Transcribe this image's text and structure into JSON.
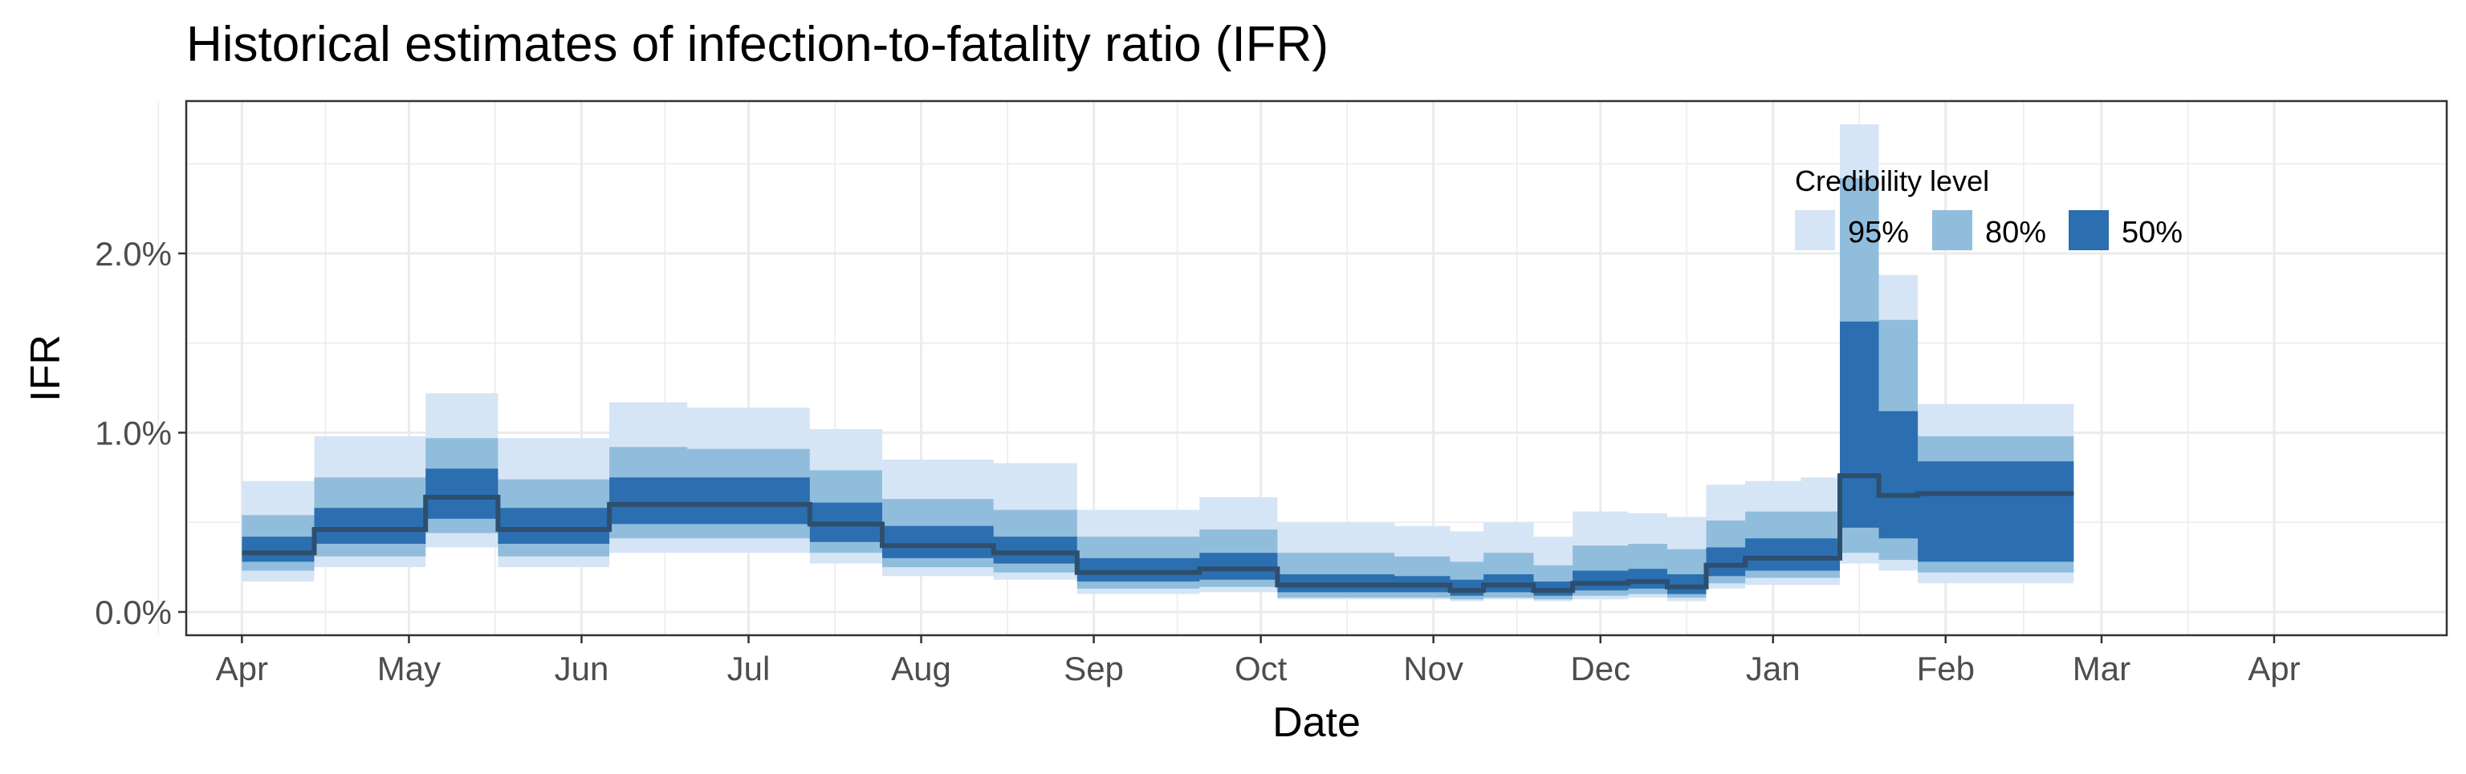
{
  "chart_data": {
    "type": "area",
    "title": "Historical estimates of infection-to-fatality ratio (IFR)",
    "xlabel": "Date",
    "ylabel": "IFR",
    "x_tick_labels": [
      "Apr",
      "May",
      "Jun",
      "Jul",
      "Aug",
      "Sep",
      "Oct",
      "Nov",
      "Dec",
      "Jan",
      "Feb",
      "Mar",
      "Apr"
    ],
    "y_tick_labels": [
      "0.0%",
      "1.0%",
      "2.0%"
    ],
    "y_ticks": [
      0,
      1,
      2
    ],
    "ylim": [
      -0.13,
      2.85
    ],
    "xlim_days": [
      -10,
      396
    ],
    "grid": true,
    "legend": {
      "title": "Credibility level",
      "position": "top-right inside",
      "entries": [
        "95%",
        "80%",
        "50%"
      ]
    },
    "colors": {
      "band_95": "#d6e5f5",
      "band_80": "#91bddc",
      "band_50": "#2b6fb1",
      "median_line": "#2e4e6e",
      "grid": "#ebebeb",
      "panel_border": "#333333"
    },
    "segments": [
      {
        "start": "2020-04-01",
        "end": "2020-04-14",
        "median": 0.33,
        "lo50": 0.28,
        "hi50": 0.42,
        "lo80": 0.23,
        "hi80": 0.54,
        "lo95": 0.17,
        "hi95": 0.73
      },
      {
        "start": "2020-04-14",
        "end": "2020-05-04",
        "median": 0.46,
        "lo50": 0.38,
        "hi50": 0.58,
        "lo80": 0.31,
        "hi80": 0.75,
        "lo95": 0.25,
        "hi95": 0.98
      },
      {
        "start": "2020-05-04",
        "end": "2020-05-17",
        "median": 0.64,
        "lo50": 0.52,
        "hi50": 0.8,
        "lo80": 0.44,
        "hi80": 0.97,
        "lo95": 0.36,
        "hi95": 1.22
      },
      {
        "start": "2020-05-17",
        "end": "2020-06-06",
        "median": 0.46,
        "lo50": 0.38,
        "hi50": 0.58,
        "lo80": 0.31,
        "hi80": 0.74,
        "lo95": 0.25,
        "hi95": 0.97
      },
      {
        "start": "2020-06-06",
        "end": "2020-06-20",
        "median": 0.6,
        "lo50": 0.49,
        "hi50": 0.75,
        "lo80": 0.41,
        "hi80": 0.92,
        "lo95": 0.33,
        "hi95": 1.17
      },
      {
        "start": "2020-06-20",
        "end": "2020-07-12",
        "median": 0.6,
        "lo50": 0.49,
        "hi50": 0.75,
        "lo80": 0.41,
        "hi80": 0.91,
        "lo95": 0.33,
        "hi95": 1.14
      },
      {
        "start": "2020-07-12",
        "end": "2020-07-25",
        "median": 0.49,
        "lo50": 0.39,
        "hi50": 0.61,
        "lo80": 0.33,
        "hi80": 0.79,
        "lo95": 0.27,
        "hi95": 1.02
      },
      {
        "start": "2020-07-25",
        "end": "2020-08-14",
        "median": 0.37,
        "lo50": 0.3,
        "hi50": 0.48,
        "lo80": 0.25,
        "hi80": 0.63,
        "lo95": 0.2,
        "hi95": 0.85
      },
      {
        "start": "2020-08-14",
        "end": "2020-08-29",
        "median": 0.33,
        "lo50": 0.27,
        "hi50": 0.42,
        "lo80": 0.22,
        "hi80": 0.57,
        "lo95": 0.18,
        "hi95": 0.83
      },
      {
        "start": "2020-08-29",
        "end": "2020-09-20",
        "median": 0.22,
        "lo50": 0.17,
        "hi50": 0.3,
        "lo80": 0.13,
        "hi80": 0.42,
        "lo95": 0.1,
        "hi95": 0.57
      },
      {
        "start": "2020-09-20",
        "end": "2020-10-04",
        "median": 0.24,
        "lo50": 0.18,
        "hi50": 0.33,
        "lo80": 0.14,
        "hi80": 0.46,
        "lo95": 0.11,
        "hi95": 0.64
      },
      {
        "start": "2020-10-04",
        "end": "2020-10-25",
        "median": 0.15,
        "lo50": 0.11,
        "hi50": 0.21,
        "lo80": 0.08,
        "hi80": 0.33,
        "lo95": 0.07,
        "hi95": 0.5
      },
      {
        "start": "2020-10-25",
        "end": "2020-11-04",
        "median": 0.15,
        "lo50": 0.11,
        "hi50": 0.2,
        "lo80": 0.08,
        "hi80": 0.31,
        "lo95": 0.07,
        "hi95": 0.48
      },
      {
        "start": "2020-11-04",
        "end": "2020-11-10",
        "median": 0.12,
        "lo50": 0.09,
        "hi50": 0.18,
        "lo80": 0.07,
        "hi80": 0.28,
        "lo95": 0.06,
        "hi95": 0.45
      },
      {
        "start": "2020-11-10",
        "end": "2020-11-19",
        "median": 0.15,
        "lo50": 0.11,
        "hi50": 0.21,
        "lo80": 0.08,
        "hi80": 0.33,
        "lo95": 0.07,
        "hi95": 0.5
      },
      {
        "start": "2020-11-19",
        "end": "2020-11-26",
        "median": 0.12,
        "lo50": 0.09,
        "hi50": 0.17,
        "lo80": 0.07,
        "hi80": 0.26,
        "lo95": 0.06,
        "hi95": 0.42
      },
      {
        "start": "2020-11-26",
        "end": "2020-12-06",
        "median": 0.16,
        "lo50": 0.12,
        "hi50": 0.23,
        "lo80": 0.09,
        "hi80": 0.37,
        "lo95": 0.07,
        "hi95": 0.56
      },
      {
        "start": "2020-12-06",
        "end": "2020-12-13",
        "median": 0.17,
        "lo50": 0.13,
        "hi50": 0.24,
        "lo80": 0.1,
        "hi80": 0.38,
        "lo95": 0.08,
        "hi95": 0.55
      },
      {
        "start": "2020-12-13",
        "end": "2020-12-20",
        "median": 0.14,
        "lo50": 0.1,
        "hi50": 0.21,
        "lo80": 0.08,
        "hi80": 0.35,
        "lo95": 0.06,
        "hi95": 0.53
      },
      {
        "start": "2020-12-20",
        "end": "2020-12-27",
        "median": 0.26,
        "lo50": 0.2,
        "hi50": 0.36,
        "lo80": 0.16,
        "hi80": 0.51,
        "lo95": 0.13,
        "hi95": 0.71
      },
      {
        "start": "2020-12-27",
        "end": "2021-01-06",
        "median": 0.3,
        "lo50": 0.23,
        "hi50": 0.41,
        "lo80": 0.19,
        "hi80": 0.56,
        "lo95": 0.15,
        "hi95": 0.73
      },
      {
        "start": "2021-01-06",
        "end": "2021-01-13",
        "median": 0.3,
        "lo50": 0.23,
        "hi50": 0.41,
        "lo80": 0.19,
        "hi80": 0.56,
        "lo95": 0.15,
        "hi95": 0.75
      },
      {
        "start": "2021-01-13",
        "end": "2021-01-20",
        "median": 0.76,
        "lo50": 0.47,
        "hi50": 1.62,
        "lo80": 0.33,
        "hi80": 2.42,
        "lo95": 0.27,
        "hi95": 2.72
      },
      {
        "start": "2021-01-20",
        "end": "2021-01-27",
        "median": 0.65,
        "lo50": 0.41,
        "hi50": 1.12,
        "lo80": 0.29,
        "hi80": 1.63,
        "lo95": 0.23,
        "hi95": 1.88
      },
      {
        "start": "2021-01-27",
        "end": "2021-02-24",
        "median": 0.66,
        "lo50": 0.28,
        "hi50": 0.84,
        "lo80": 0.22,
        "hi80": 0.98,
        "lo95": 0.16,
        "hi95": 1.16
      }
    ]
  }
}
